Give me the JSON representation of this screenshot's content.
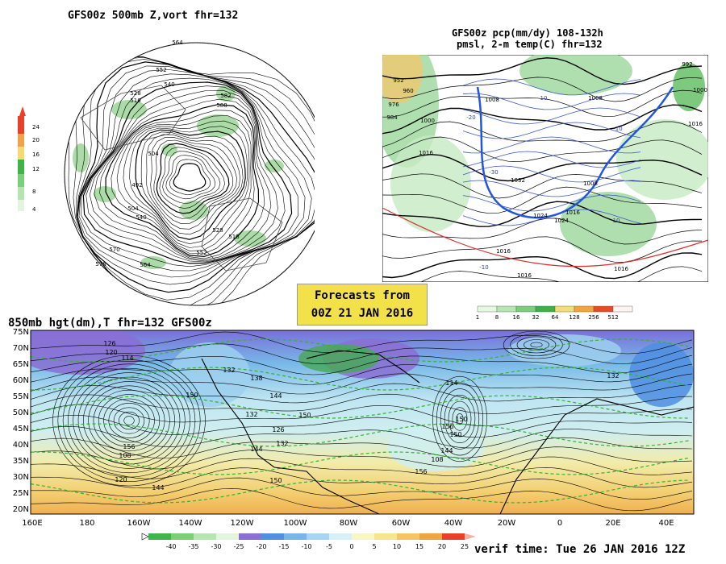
{
  "panels": {
    "vort": {
      "title": "GFS00z  500mb Z,vort   fhr=132"
    },
    "precip": {
      "title_line1": "GFS00z pcp(mm/dy) 108-132h",
      "title_line2": "pmsl, 2-m temp(C)  fhr=132"
    },
    "h850": {
      "title": "850mb hgt(dm),T  fhr=132 GFS00z"
    }
  },
  "forecast_box": {
    "line1": "Forecasts from",
    "line2": "00Z 21 JAN 2016"
  },
  "verif_time": "verif time: Tue 26 JAN 2016 12Z",
  "vort_scale": {
    "labels": [
      "24",
      "20",
      "16",
      "12",
      "8",
      "4"
    ]
  },
  "precip_scale": {
    "labels": [
      "1",
      "8",
      "16",
      "32",
      "64",
      "128",
      "256",
      "512"
    ]
  },
  "temp_scale": {
    "labels": [
      "-40",
      "-35",
      "-30",
      "-25",
      "-20",
      "-15",
      "-10",
      "-5",
      "0",
      "5",
      "10",
      "15",
      "20",
      "25"
    ]
  },
  "map": {
    "lat_labels": [
      "75N",
      "70N",
      "65N",
      "60N",
      "55N",
      "50N",
      "45N",
      "40N",
      "35N",
      "30N",
      "25N",
      "20N"
    ],
    "lon_labels": [
      "160E",
      "180",
      "160W",
      "140W",
      "120W",
      "100W",
      "80W",
      "60W",
      "40W",
      "20W",
      "0",
      "20E",
      "40E"
    ],
    "contour_labels": [
      "126",
      "120",
      "114",
      "132",
      "138",
      "144",
      "150",
      "156",
      "108",
      "120",
      "144",
      "150",
      "132",
      "126",
      "132",
      "144",
      "150",
      "156",
      "144",
      "150",
      "156",
      "150",
      "108",
      "114",
      "132"
    ]
  },
  "vort_labels": [
    "564",
    "552",
    "540",
    "528",
    "516",
    "504",
    "492",
    "582",
    "588",
    "570",
    "576",
    "564",
    "528",
    "516",
    "504",
    "540",
    "552"
  ],
  "precip_labels": [
    "952",
    "960",
    "976",
    "984",
    "1000",
    "1016",
    "992",
    "1008",
    "1000",
    "1008",
    "1016",
    "1024",
    "1032",
    "1008",
    "1016",
    "1024",
    "1016",
    "1016",
    "1016",
    "-10",
    "10",
    "-20",
    "-30",
    "-10",
    "10"
  ]
}
